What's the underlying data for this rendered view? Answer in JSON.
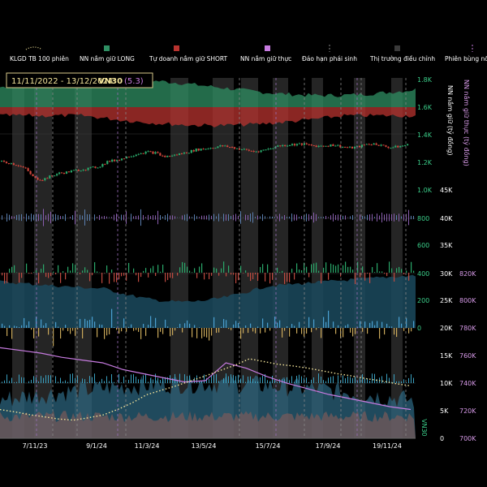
{
  "legend": {
    "items": [
      {
        "label": "KLGD TB 100 phiên",
        "marker": "dotted",
        "color": "#f2e39a"
      },
      {
        "label": "NN nắm giữ LONG",
        "marker": "square",
        "color": "#2f8f63"
      },
      {
        "label": "Tự doanh nắm giữ SHORT",
        "marker": "square",
        "color": "#b8332f"
      },
      {
        "label": "NN nắm giữ thực",
        "marker": "square",
        "color": "#c77be0"
      },
      {
        "label": "Đáo hạn phái sinh",
        "marker": "dashed",
        "color": "#8a8a8a"
      },
      {
        "label": "Thị trường điều chỉnh",
        "marker": "square",
        "color": "#3a3a3a"
      },
      {
        "label": "Phiên bùng nổ",
        "marker": "dashed",
        "color": "#c77be0"
      }
    ]
  },
  "header": {
    "date_range": "11/11/2022 - 13/12/2024",
    "symbol": "VN30",
    "tag": "(5.3)"
  },
  "colors": {
    "price_up": "#2aa86a",
    "price_down": "#d0453b",
    "net_holding": "#c77be0",
    "volume": "#3b7fa3",
    "long": "#2f8f63",
    "short": "#b8332f",
    "ma": "#f2e39a",
    "axis_green": "#3bcf8a"
  },
  "chart_data": {
    "type": "line",
    "x_tick_labels": [
      "7/11/23",
      "9/1/24",
      "11/3/24",
      "13/5/24",
      "15/7/24",
      "17/9/24",
      "19/11/24"
    ],
    "axes": {
      "price_axis": {
        "ticks": [
          "1.8K",
          "1.6K",
          "1.4K",
          "1.2K",
          "1.0K"
        ],
        "range": [
          1000,
          1800
        ]
      },
      "flow_axis": {
        "ticks": [
          "800",
          "600",
          "400",
          "200",
          "0"
        ],
        "range": [
          0,
          800
        ]
      },
      "holding_axis": {
        "title": "NN nắm giữ (tỷ đồng)",
        "ticks": [
          "45K",
          "40K",
          "35K",
          "30K",
          "25K",
          "20K",
          "15K",
          "10K",
          "5K",
          "0"
        ],
        "range": [
          0,
          45000
        ]
      },
      "net_axis": {
        "title": "NN nắm giữ thực (tỷ đồng)",
        "ticks": [
          "820K",
          "800K",
          "780K",
          "760K",
          "740K",
          "720K",
          "700K"
        ],
        "range": [
          700000,
          820000
        ]
      },
      "volume_axis": {
        "title": "VN30"
      }
    },
    "series": [
      {
        "key": "price",
        "values": [
          1205,
          1195,
          1180,
          1150,
          1085,
          1075,
          1098,
          1120,
          1128,
          1140,
          1150,
          1158,
          1170,
          1205,
          1215,
          1230,
          1250,
          1268,
          1275,
          1268,
          1240,
          1248,
          1262,
          1275,
          1292,
          1298,
          1308,
          1318,
          1312,
          1300,
          1290,
          1278,
          1285,
          1300,
          1318,
          1325,
          1330,
          1332,
          1324,
          1318,
          1322,
          1326,
          1312,
          1304,
          1314,
          1332,
          1334,
          1318,
          1306,
          1316,
          1326
        ]
      },
      {
        "key": "net_holding",
        "values": [
          766000,
          764000,
          762000,
          759000,
          757000,
          755000,
          750000,
          747000,
          744000,
          741000,
          742000,
          755000,
          751000,
          745000,
          740000,
          736000,
          732000,
          729000,
          726000,
          723000,
          721000
        ]
      },
      {
        "key": "ma100",
        "values": [
          5200,
          4800,
          4300,
          3900,
          3500,
          3300,
          3700,
          4200,
          5200,
          6400,
          7900,
          8700,
          9500,
          10400,
          11300,
          12300,
          13200,
          14400,
          13900,
          13400,
          13100,
          12700,
          12200,
          11700,
          11300,
          10800,
          10400,
          9900,
          9500
        ]
      }
    ]
  }
}
